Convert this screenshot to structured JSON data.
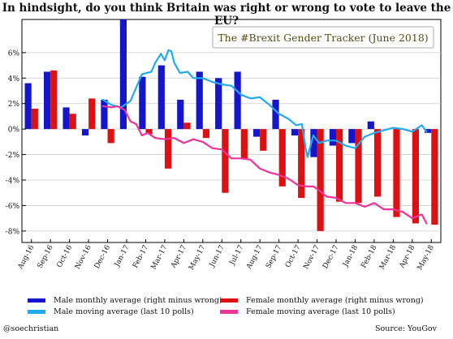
{
  "chart_data": {
    "type": "bar",
    "title": "In hindsight, do you think Britain was right or wrong to vote to leave the EU?",
    "subtitle": "The #Brexit Gender Tracker (June 2018)",
    "xlabel": "",
    "ylabel": "",
    "ylim": [
      -8.9,
      8.6
    ],
    "yticks": [
      -8,
      -6,
      -4,
      -2,
      0,
      2,
      4,
      6
    ],
    "ytick_labels": [
      "-8%",
      "-6%",
      "-4%",
      "-2%",
      "0%",
      "2%",
      "4%",
      "6%"
    ],
    "grid": true,
    "categories": [
      "Aug-16",
      "Sep-16",
      "Oct-16",
      "Nov-16",
      "Dec-16",
      "Jan-17",
      "Feb-17",
      "Mar-17",
      "Apr-17",
      "May-17",
      "Jun-17",
      "Jul-17",
      "Aug-17",
      "Sep-17",
      "Oct-17",
      "Nov-17",
      "Dec-17",
      "Jan-18",
      "Feb-18",
      "Mar-18",
      "Apr-18",
      "May-18"
    ],
    "series": [
      {
        "name": "Male monthly average (right minus wrong)",
        "kind": "bar",
        "color": "#1515cc",
        "values": [
          3.6,
          4.5,
          1.7,
          -0.5,
          2.3,
          8.6,
          4.1,
          5.0,
          2.3,
          4.5,
          4.0,
          4.5,
          -0.6,
          2.3,
          -0.5,
          -2.2,
          -1.3,
          -1.1,
          0.6,
          0.0,
          0.0,
          -0.3
        ]
      },
      {
        "name": "Female monthly average (right minus wrong)",
        "kind": "bar",
        "color": "#dd1111",
        "values": [
          1.6,
          4.6,
          1.2,
          2.4,
          -1.1,
          0.0,
          -0.4,
          -3.1,
          0.5,
          -0.7,
          -5.0,
          -2.3,
          -1.7,
          -4.5,
          -5.4,
          -8.0,
          -5.7,
          -5.8,
          -5.3,
          -6.9,
          -7.4,
          -7.5
        ]
      },
      {
        "name": "Male moving average (last 10 polls)",
        "kind": "line",
        "color": "#22aaee",
        "x": [
          4.25,
          4.7,
          5.2,
          5.7,
          6.3,
          6.8,
          7.0,
          7.3,
          7.5,
          7.7,
          7.85,
          8.0,
          8.3,
          8.7,
          9.0,
          9.5,
          10.0,
          10.5,
          11.0,
          11.5,
          12.0,
          12.5,
          13.0,
          13.5,
          14.0,
          14.4,
          14.7,
          14.9,
          15.0,
          15.3,
          15.6,
          16.0,
          16.5,
          17.0,
          17.5,
          18.0,
          18.5,
          19.0,
          19.5,
          20.0,
          20.5,
          21.0,
          21.25
        ],
        "y": [
          2.3,
          1.9,
          1.7,
          2.2,
          4.3,
          4.5,
          5.2,
          5.9,
          5.4,
          6.2,
          6.1,
          5.2,
          4.4,
          4.5,
          4.0,
          4.0,
          3.7,
          3.5,
          3.4,
          2.7,
          2.4,
          2.5,
          1.9,
          1.2,
          0.8,
          0.3,
          0.4,
          -1.5,
          -2.2,
          -0.5,
          -1.1,
          -0.9,
          -0.9,
          -1.3,
          -1.5,
          -0.6,
          -0.3,
          -0.1,
          0.1,
          0.0,
          -0.2,
          0.3,
          -0.2
        ]
      },
      {
        "name": "Female moving average (last 10 polls)",
        "kind": "line",
        "color": "#ee3399",
        "x": [
          4.25,
          4.7,
          5.0,
          5.4,
          5.7,
          6.0,
          6.3,
          6.6,
          7.0,
          7.5,
          8.0,
          8.5,
          9.0,
          9.5,
          10.0,
          10.5,
          11.0,
          11.5,
          12.0,
          12.5,
          13.0,
          13.5,
          14.0,
          14.5,
          15.0,
          15.3,
          15.6,
          16.0,
          16.5,
          17.0,
          17.5,
          18.0,
          18.5,
          19.0,
          19.5,
          20.0,
          20.5,
          21.0,
          21.25
        ],
        "y": [
          1.8,
          1.7,
          1.8,
          1.5,
          0.6,
          0.4,
          -0.5,
          -0.3,
          -0.7,
          -0.8,
          -0.7,
          -1.1,
          -0.8,
          -1.0,
          -1.5,
          -1.6,
          -2.3,
          -2.3,
          -2.4,
          -3.1,
          -3.4,
          -3.6,
          -3.9,
          -4.4,
          -4.5,
          -4.5,
          -4.8,
          -5.3,
          -5.4,
          -5.8,
          -5.8,
          -6.1,
          -5.8,
          -6.3,
          -6.3,
          -6.5,
          -7.0,
          -6.7,
          -7.4
        ]
      }
    ],
    "legend": {
      "placement": "bottom",
      "columns": 2
    }
  },
  "footer": {
    "left": "@soechristian",
    "right": "Source:  YouGov"
  }
}
